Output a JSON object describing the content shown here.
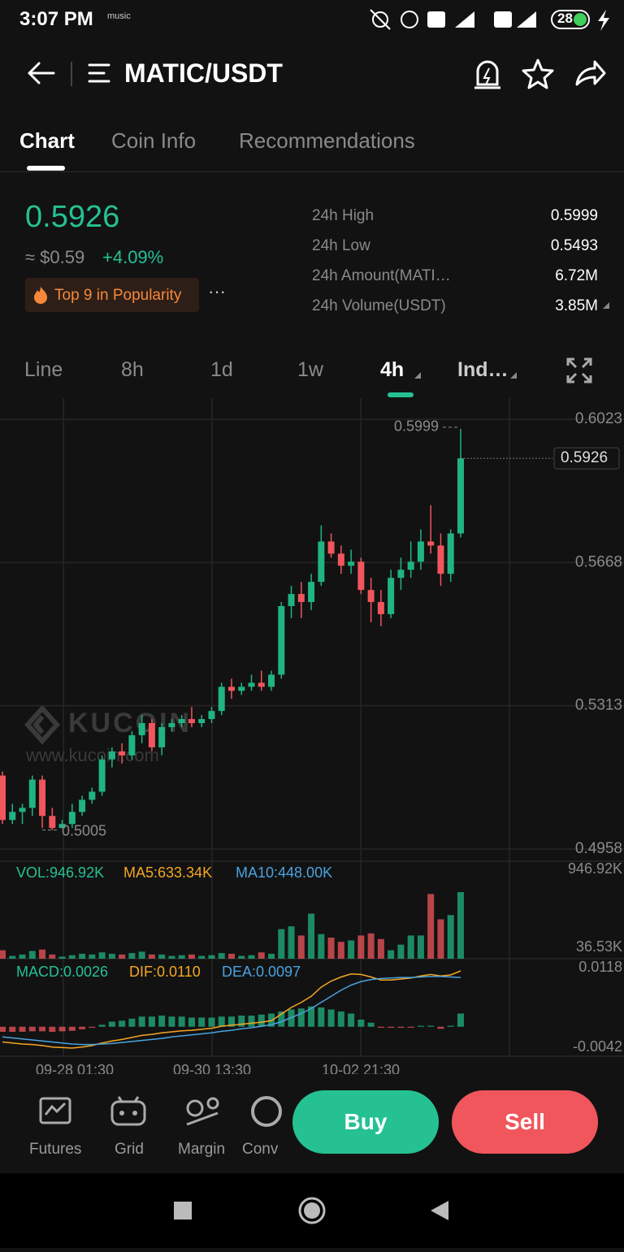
{
  "status_bar": {
    "time": "3:07 PM",
    "music": "music",
    "battery": "28"
  },
  "header": {
    "title": "MATIC/USDT"
  },
  "tabs": [
    "Chart",
    "Coin Info",
    "Recommendations"
  ],
  "ticker": {
    "price": "0.5926",
    "usd": "≈ $0.59",
    "change": "+4.09%",
    "badge": "Top 9 in Popularity",
    "stats": [
      {
        "label": "24h High",
        "value": "0.5999"
      },
      {
        "label": "24h Low",
        "value": "0.5493"
      },
      {
        "label": "24h Amount(MATI…",
        "value": "6.72M"
      },
      {
        "label": "24h Volume(USDT)",
        "value": "3.85M"
      }
    ]
  },
  "intervals": [
    "Line",
    "8h",
    "1d",
    "1w",
    "4h",
    "Ind…"
  ],
  "chart": {
    "type": "candlestick",
    "watermark": "KUCOIN",
    "watermark_url": "www.kucoin.com",
    "up_color": "#20b482",
    "down_color": "#f0565c",
    "ylim": [
      0.4958,
      0.6023
    ],
    "yticks": [
      0.6023,
      0.5668,
      0.5313,
      0.4958
    ],
    "last_price": 0.5926,
    "high_mark": 0.5999,
    "low_mark": 0.5005,
    "x_labels": [
      "09-28 01:30",
      "09-30 13:30",
      "10-02 21:30"
    ],
    "open": [
      0.514,
      0.503,
      0.505,
      0.506,
      0.513,
      0.504,
      0.501,
      0.502,
      0.505,
      0.508,
      0.51,
      0.518,
      0.52,
      0.519,
      0.524,
      0.527,
      0.521,
      0.526,
      0.527,
      0.528,
      0.527,
      0.528,
      0.53,
      0.536,
      0.535,
      0.536,
      0.537,
      0.536,
      0.539,
      0.556,
      0.559,
      0.557,
      0.562,
      0.572,
      0.569,
      0.566,
      0.567,
      0.56,
      0.557,
      0.554,
      0.563,
      0.565,
      0.567,
      0.572,
      0.571,
      0.564,
      0.574
    ],
    "high": [
      0.515,
      0.507,
      0.507,
      0.514,
      0.514,
      0.506,
      0.503,
      0.507,
      0.509,
      0.511,
      0.519,
      0.521,
      0.522,
      0.525,
      0.529,
      0.528,
      0.527,
      0.528,
      0.529,
      0.531,
      0.529,
      0.531,
      0.537,
      0.538,
      0.537,
      0.539,
      0.54,
      0.54,
      0.557,
      0.561,
      0.562,
      0.564,
      0.576,
      0.574,
      0.571,
      0.57,
      0.568,
      0.563,
      0.56,
      0.565,
      0.568,
      0.572,
      0.575,
      0.581,
      0.574,
      0.575,
      0.5999
    ],
    "low": [
      0.502,
      0.502,
      0.502,
      0.504,
      0.501,
      0.5005,
      0.501,
      0.501,
      0.504,
      0.507,
      0.509,
      0.516,
      0.517,
      0.518,
      0.522,
      0.52,
      0.519,
      0.525,
      0.526,
      0.526,
      0.526,
      0.527,
      0.529,
      0.533,
      0.534,
      0.535,
      0.535,
      0.535,
      0.538,
      0.553,
      0.553,
      0.555,
      0.561,
      0.568,
      0.564,
      0.564,
      0.559,
      0.552,
      0.551,
      0.553,
      0.56,
      0.563,
      0.565,
      0.569,
      0.561,
      0.562,
      0.573
    ],
    "close": [
      0.503,
      0.505,
      0.506,
      0.513,
      0.504,
      0.501,
      0.502,
      0.505,
      0.508,
      0.51,
      0.518,
      0.52,
      0.519,
      0.524,
      0.527,
      0.521,
      0.526,
      0.527,
      0.528,
      0.527,
      0.528,
      0.53,
      0.536,
      0.535,
      0.536,
      0.537,
      0.536,
      0.539,
      0.556,
      0.559,
      0.557,
      0.562,
      0.572,
      0.569,
      0.566,
      0.567,
      0.56,
      0.557,
      0.554,
      0.563,
      0.565,
      0.567,
      0.572,
      0.571,
      0.564,
      0.574,
      0.5926
    ],
    "volume": {
      "legend": [
        "VOL:946.92K",
        "MA5:633.34K",
        "MA10:448.00K"
      ],
      "legend_colors": [
        "#25c193",
        "#f5a623",
        "#4aa3df"
      ],
      "ylim": [
        0,
        946.92
      ],
      "yticks": [
        {
          "value": 946.92,
          "label": "946.92K"
        },
        {
          "value": 36.53,
          "label": "36.53K"
        }
      ],
      "values": [
        120,
        40,
        60,
        110,
        130,
        60,
        30,
        50,
        70,
        60,
        90,
        70,
        60,
        80,
        100,
        60,
        60,
        40,
        50,
        60,
        40,
        50,
        80,
        70,
        40,
        50,
        90,
        70,
        420,
        460,
        330,
        640,
        350,
        300,
        240,
        260,
        330,
        360,
        280,
        120,
        200,
        330,
        330,
        920,
        560,
        620,
        946.92
      ]
    },
    "macd": {
      "legend": [
        "MACD:0.0026",
        "DIF:0.0110",
        "DEA:0.0097"
      ],
      "legend_colors": [
        "#25c193",
        "#f5a623",
        "#4aa3df"
      ],
      "ylim": [
        -0.0042,
        0.0118
      ],
      "yticks": [
        0.0118,
        -0.0042
      ],
      "values": [
        -0.001,
        -0.001,
        -0.001,
        -0.0009,
        -0.0009,
        -0.001,
        -0.0009,
        -0.0008,
        -0.0005,
        -0.0002,
        0.0004,
        0.001,
        0.0012,
        0.0016,
        0.002,
        0.002,
        0.0022,
        0.002,
        0.002,
        0.0018,
        0.0018,
        0.0018,
        0.002,
        0.002,
        0.0022,
        0.0022,
        0.0024,
        0.0026,
        0.003,
        0.0034,
        0.0036,
        0.004,
        0.0038,
        0.0034,
        0.003,
        0.0026,
        0.0014,
        0.0008,
        -0.0002,
        -0.0002,
        -0.0002,
        -0.0002,
        0.0002,
        0.0002,
        -0.0004,
        0.0002,
        0.0026
      ],
      "dif": [
        -0.003,
        -0.0032,
        -0.0034,
        -0.0035,
        -0.0037,
        -0.004,
        -0.0041,
        -0.0042,
        -0.004,
        -0.0037,
        -0.0032,
        -0.0028,
        -0.0025,
        -0.0021,
        -0.0017,
        -0.0015,
        -0.0012,
        -0.001,
        -0.0008,
        -0.0007,
        -0.0005,
        -0.0003,
        0.0001,
        0.0003,
        0.0005,
        0.0007,
        0.0009,
        0.0012,
        0.0025,
        0.0038,
        0.0048,
        0.006,
        0.0078,
        0.009,
        0.0098,
        0.0104,
        0.0103,
        0.0098,
        0.0092,
        0.0092,
        0.0094,
        0.0096,
        0.01,
        0.0103,
        0.01,
        0.0102,
        0.011
      ],
      "dea": [
        -0.002,
        -0.0022,
        -0.0024,
        -0.0026,
        -0.0028,
        -0.003,
        -0.0032,
        -0.0034,
        -0.0035,
        -0.0035,
        -0.0034,
        -0.0033,
        -0.0031,
        -0.0029,
        -0.0027,
        -0.0025,
        -0.0023,
        -0.002,
        -0.0018,
        -0.0016,
        -0.0014,
        -0.0012,
        -0.0009,
        -0.0007,
        -0.0004,
        -0.0002,
        0.0001,
        0.0004,
        0.001,
        0.0018,
        0.0026,
        0.0036,
        0.0048,
        0.006,
        0.0072,
        0.0082,
        0.0089,
        0.0093,
        0.0095,
        0.0096,
        0.0097,
        0.0097,
        0.0098,
        0.0099,
        0.0099,
        0.0098,
        0.0097
      ]
    }
  },
  "bottom_bar": {
    "tools": [
      "Futures",
      "Grid",
      "Margin",
      "Conv"
    ],
    "buy": "Buy",
    "sell": "Sell"
  }
}
